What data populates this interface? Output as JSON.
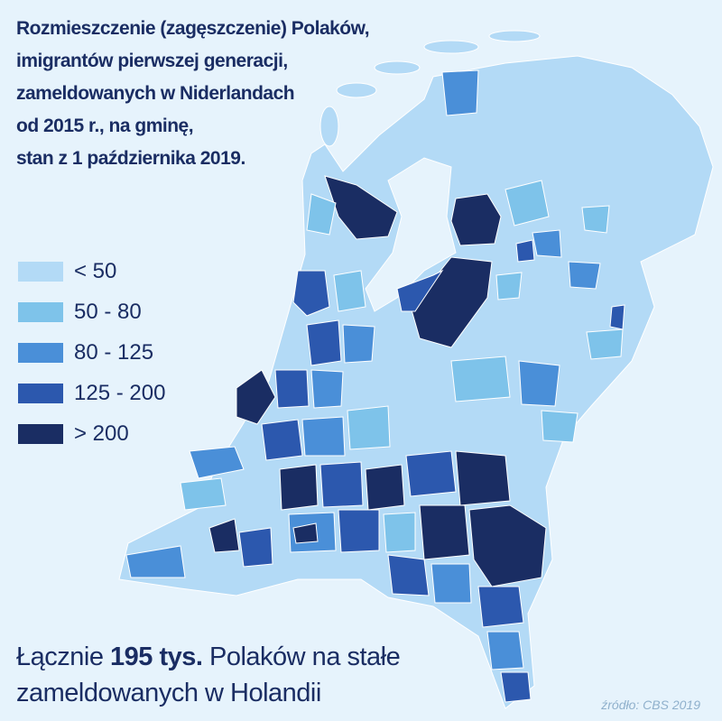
{
  "header": {
    "title_lines": [
      "Rozmieszczenie (zagęszczenie) Polaków,",
      "imigrantów pierwszej generacji,",
      "zameldowanych w Niderlandach",
      "od 2015 r., na gminę,",
      "stan z 1 października 2019."
    ]
  },
  "legend": [
    {
      "label": "< 50",
      "color": "#b3daf6"
    },
    {
      "label": "50 - 80",
      "color": "#7ec3ea"
    },
    {
      "label": "80 - 125",
      "color": "#4a8fd8"
    },
    {
      "label": "125 - 200",
      "color": "#2c58ae"
    },
    {
      "label": "> 200",
      "color": "#1a2d63"
    }
  ],
  "footer": {
    "line1_start": "Łącznie",
    "line1_bold": "195 tys.",
    "line1_end": "Polaków na stałe",
    "line2": "zameldowanych w Holandii"
  },
  "source": "źródło: CBS 2019"
}
